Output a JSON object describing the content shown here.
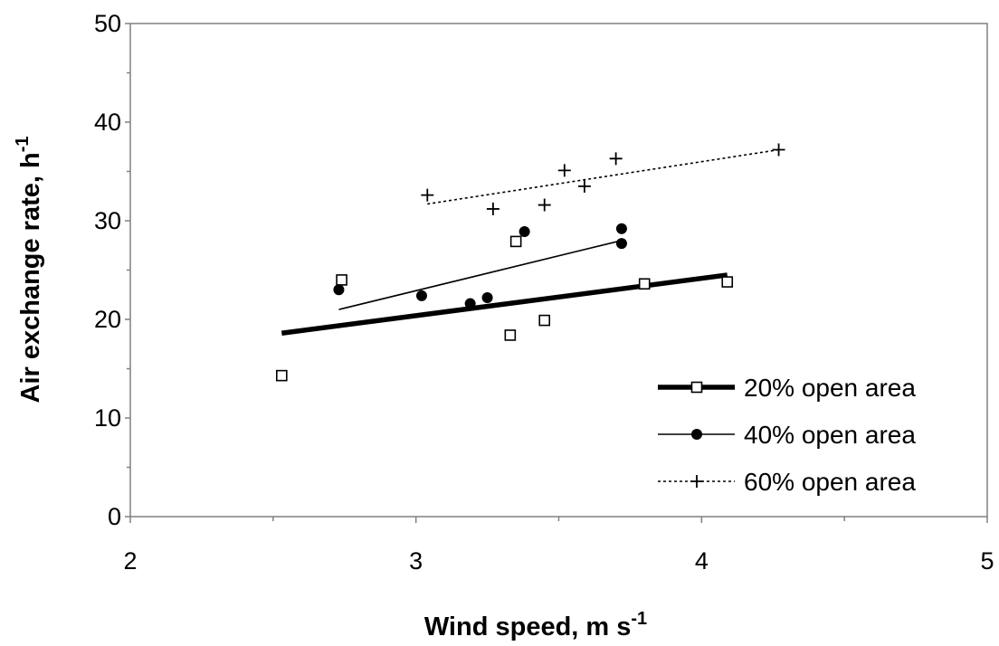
{
  "chart_data": {
    "type": "scatter",
    "title": "",
    "xlabel": "Wind speed, m s",
    "xlabel_sup": "-1",
    "ylabel": "Air exchange rate, h",
    "ylabel_sup": "-1",
    "xlim": [
      2,
      5
    ],
    "ylim": [
      0,
      50
    ],
    "xticks": [
      "2",
      "3",
      "4",
      "5"
    ],
    "yticks": [
      "0",
      "10",
      "20",
      "30",
      "40",
      "50"
    ],
    "grid": false,
    "legend_position": "bottom-right",
    "series": [
      {
        "name": "20% open area",
        "marker": "open-square",
        "line_style": "thick-solid",
        "points": [
          [
            2.53,
            14.3
          ],
          [
            2.74,
            24.0
          ],
          [
            3.33,
            18.4
          ],
          [
            3.35,
            27.9
          ],
          [
            3.45,
            19.9
          ],
          [
            3.8,
            23.6
          ],
          [
            4.09,
            23.8
          ]
        ],
        "trend": [
          [
            2.53,
            18.6
          ],
          [
            4.09,
            24.5
          ]
        ]
      },
      {
        "name": "40% open area",
        "marker": "filled-circle",
        "line_style": "thin-solid",
        "points": [
          [
            2.73,
            23.0
          ],
          [
            3.02,
            22.4
          ],
          [
            3.19,
            21.6
          ],
          [
            3.25,
            22.2
          ],
          [
            3.38,
            28.9
          ],
          [
            3.72,
            29.2
          ],
          [
            3.72,
            27.7
          ]
        ],
        "trend": [
          [
            2.73,
            21.0
          ],
          [
            3.72,
            28.0
          ]
        ]
      },
      {
        "name": "60% open area",
        "marker": "plus",
        "line_style": "dotted",
        "points": [
          [
            3.04,
            32.6
          ],
          [
            3.27,
            31.2
          ],
          [
            3.45,
            31.6
          ],
          [
            3.52,
            35.1
          ],
          [
            3.59,
            33.5
          ],
          [
            3.7,
            36.3
          ],
          [
            4.27,
            37.2
          ]
        ],
        "trend": [
          [
            3.04,
            31.7
          ],
          [
            4.27,
            37.2
          ]
        ]
      }
    ]
  }
}
